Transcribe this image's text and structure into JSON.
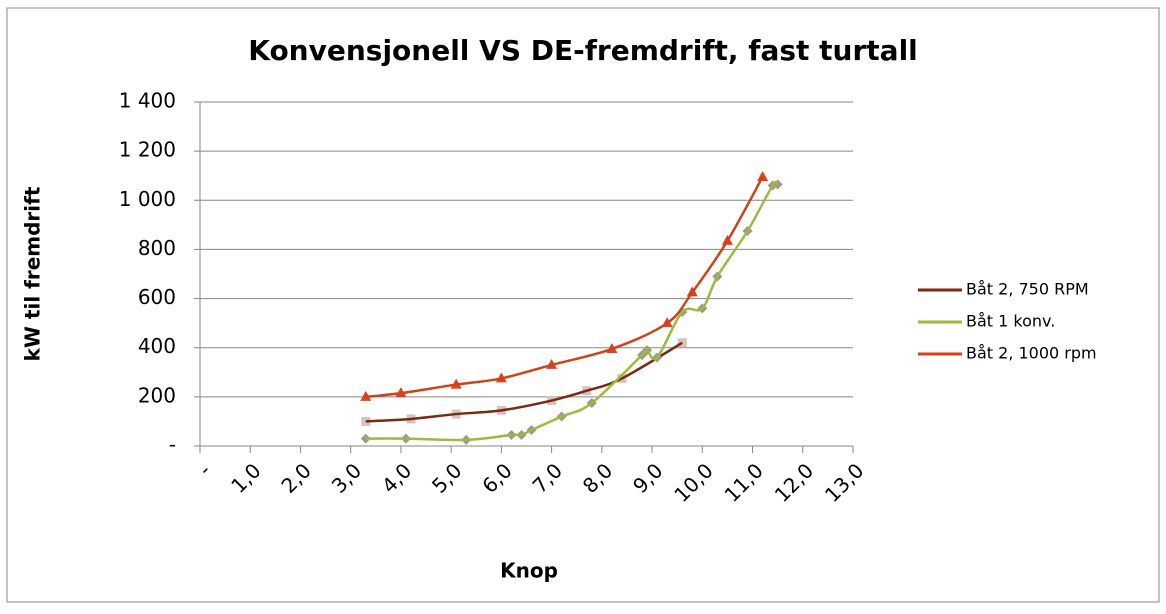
{
  "chart_data": {
    "type": "scatter",
    "title": "Konvensjonell VS DE-fremdrift, fast turtall",
    "x_label": "Knop",
    "y_label": "kW til fremdrift",
    "xlim": [
      0,
      13
    ],
    "xticks": [
      {
        "value": 0,
        "label": "-"
      },
      {
        "value": 1,
        "label": "1,0"
      },
      {
        "value": 2,
        "label": "2,0"
      },
      {
        "value": 3,
        "label": "3,0"
      },
      {
        "value": 4,
        "label": "4,0"
      },
      {
        "value": 5,
        "label": "5,0"
      },
      {
        "value": 6,
        "label": "6,0"
      },
      {
        "value": 7,
        "label": "7,0"
      },
      {
        "value": 8,
        "label": "8,0"
      },
      {
        "value": 9,
        "label": "9,0"
      },
      {
        "value": 10,
        "label": "10,0"
      },
      {
        "value": 11,
        "label": "11,0"
      },
      {
        "value": 12,
        "label": "12,0"
      },
      {
        "value": 13,
        "label": "13,0"
      }
    ],
    "ylim": [
      0,
      1400
    ],
    "yticks": [
      {
        "value": 0,
        "label": "-"
      },
      200,
      400,
      600,
      800,
      {
        "value": 1000,
        "label": "1 000"
      },
      {
        "value": 1200,
        "label": "1 200"
      },
      {
        "value": 1400,
        "label": "1 400"
      }
    ],
    "grid": true,
    "legend": "right",
    "series": [
      {
        "name": "Båt 2, 750 RPM",
        "color": "#7b2a12",
        "marker_color": "#d8c2bf",
        "marker": "square",
        "x": [
          3.3,
          4.2,
          5.1,
          6.0,
          7.0,
          7.7,
          8.4,
          9.6
        ],
        "values": [
          100,
          110,
          130,
          145,
          185,
          225,
          275,
          420
        ]
      },
      {
        "name": "Båt 1 konv.",
        "color": "#9bbb3b",
        "marker_color": "#a0968f",
        "marker": "diamond",
        "x": [
          3.3,
          4.1,
          5.3,
          6.2,
          6.4,
          6.6,
          7.2,
          7.8,
          8.8,
          8.9,
          9.1,
          9.6,
          10.0,
          10.3,
          10.9,
          11.4,
          11.5
        ],
        "values": [
          30,
          30,
          25,
          45,
          45,
          65,
          120,
          175,
          370,
          390,
          360,
          545,
          560,
          690,
          875,
          1060,
          1065
        ]
      },
      {
        "name": "Båt 2, 1000 rpm",
        "color": "#d0421a",
        "marker_color": "#e0401c",
        "marker": "triangle",
        "x": [
          3.3,
          4.0,
          5.1,
          6.0,
          7.0,
          8.2,
          9.3,
          9.8,
          10.5,
          11.2
        ],
        "values": [
          200,
          215,
          250,
          275,
          330,
          395,
          500,
          625,
          835,
          1095
        ]
      }
    ]
  }
}
